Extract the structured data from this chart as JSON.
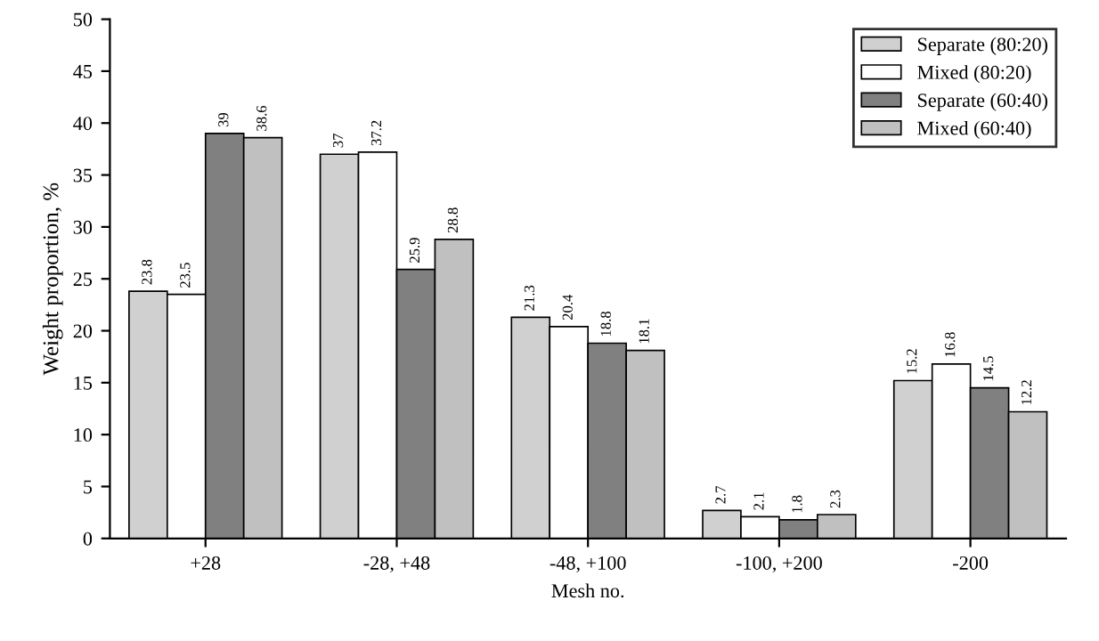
{
  "chart_data": {
    "type": "bar",
    "xlabel": "Mesh no.",
    "ylabel": "Weight proportion, %",
    "categories": [
      "+28",
      "-28, +48",
      "-48, +100",
      "-100, +200",
      "-200"
    ],
    "series": [
      {
        "name": "Separate (80:20)",
        "color": "#d0d0d0",
        "values": [
          23.8,
          37,
          21.3,
          2.7,
          15.2
        ]
      },
      {
        "name": "Mixed (80:20)",
        "color": "#ffffff",
        "values": [
          23.5,
          37.2,
          20.4,
          2.1,
          16.8
        ]
      },
      {
        "name": "Separate (60:40)",
        "color": "#808080",
        "values": [
          39,
          25.9,
          18.8,
          1.8,
          14.5
        ]
      },
      {
        "name": "Mixed (60:40)",
        "color": "#c0c0c0",
        "values": [
          38.6,
          28.8,
          18.1,
          2.3,
          12.2
        ]
      }
    ],
    "ylim": [
      0,
      50
    ],
    "yticks": [
      0,
      5,
      10,
      15,
      20,
      25,
      30,
      35,
      40,
      45,
      50
    ],
    "data_labels": true,
    "legend": "top right",
    "grid": false
  }
}
